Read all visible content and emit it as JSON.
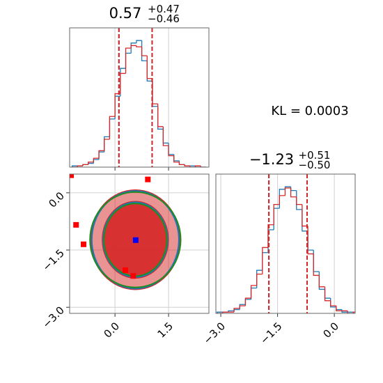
{
  "annotation": "KL = 0.0003",
  "chart_data": [
    {
      "type": "histogram",
      "title": {
        "text": "0.57",
        "sup": "+0.47",
        "sub": "−0.46"
      },
      "bins": [
        -1.2,
        -1.05,
        -0.9,
        -0.75,
        -0.6,
        -0.45,
        -0.3,
        -0.15,
        0.0,
        0.15,
        0.3,
        0.45,
        0.6,
        0.75,
        0.9,
        1.05,
        1.2,
        1.35,
        1.5,
        1.65,
        1.8,
        1.95,
        2.1,
        2.25,
        2.4,
        2.55
      ],
      "series": [
        {
          "color": "#1f77b4",
          "values": [
            0.01,
            0.01,
            0.02,
            0.03,
            0.06,
            0.12,
            0.24,
            0.38,
            0.56,
            0.78,
            0.9,
            0.98,
            1.0,
            0.84,
            0.68,
            0.48,
            0.3,
            0.19,
            0.1,
            0.05,
            0.02,
            0.01,
            0.01,
            0.0,
            0.0
          ],
          "quantiles": [
            0.11,
            1.04
          ]
        },
        {
          "color": "#d62728",
          "values": [
            0.0,
            0.01,
            0.02,
            0.04,
            0.07,
            0.13,
            0.22,
            0.4,
            0.58,
            0.74,
            0.94,
            0.96,
            0.95,
            0.88,
            0.7,
            0.5,
            0.32,
            0.17,
            0.09,
            0.04,
            0.02,
            0.01,
            0.0,
            0.01,
            0.0
          ],
          "quantiles": [
            0.11,
            1.04
          ]
        }
      ],
      "xlim": [
        -1.27,
        2.63
      ],
      "ylim": [
        0,
        1.1
      ],
      "xticks": [
        0,
        1.5
      ],
      "xtick_labels": false,
      "grid": true
    },
    {
      "type": "scatter",
      "contours": [
        {
          "color": "#d62728",
          "filled": true,
          "cx": 0.57,
          "cy": -1.23,
          "rx": [
            1.25,
            0.92
          ],
          "ry": [
            1.3,
            1.0
          ]
        },
        {
          "color": "#1f77b4",
          "filled": false,
          "cx": 0.57,
          "cy": -1.23,
          "rx": [
            1.22,
            0.9
          ],
          "ry": [
            1.28,
            0.98
          ]
        },
        {
          "color": "#228b22",
          "filled": false,
          "cx": 0.57,
          "cy": -1.23,
          "rx": [
            1.27,
            0.88
          ],
          "ry": [
            1.25,
            0.95
          ]
        }
      ],
      "series": [
        {
          "color": "#ff0000",
          "x": [
            -1.23,
            -1.09,
            -0.88,
            0.29,
            0.51,
            0.92
          ],
          "y": [
            0.46,
            -0.84,
            -1.35,
            -2.03,
            -2.18,
            0.35
          ]
        },
        {
          "color": "#0000ff",
          "x": [
            0.58
          ],
          "y": [
            -1.24
          ]
        }
      ],
      "xlim": [
        -1.27,
        2.63
      ],
      "ylim": [
        -3.16,
        0.49
      ],
      "xticks": [
        {
          "value": 0,
          "label": "0.0"
        },
        {
          "value": 1.5,
          "label": "1.5"
        }
      ],
      "yticks": [
        {
          "value": 0,
          "label": "0.0"
        },
        {
          "value": -1.5,
          "label": "−1.5"
        },
        {
          "value": -3,
          "label": "−3.0"
        }
      ],
      "grid": true
    },
    {
      "type": "histogram",
      "title": {
        "text": "−1.23",
        "sup": "+0.51",
        "sub": "−0.50"
      },
      "bins": [
        -3.1,
        -2.95,
        -2.8,
        -2.65,
        -2.5,
        -2.35,
        -2.2,
        -2.05,
        -1.9,
        -1.75,
        -1.6,
        -1.45,
        -1.3,
        -1.15,
        -1.0,
        -0.85,
        -0.7,
        -0.55,
        -0.4,
        -0.25,
        -0.1,
        0.05,
        0.2,
        0.35,
        0.5,
        0.65
      ],
      "series": [
        {
          "color": "#1f77b4",
          "values": [
            0.01,
            0.01,
            0.02,
            0.03,
            0.07,
            0.11,
            0.2,
            0.34,
            0.48,
            0.66,
            0.83,
            0.98,
            1.0,
            0.97,
            0.82,
            0.65,
            0.5,
            0.33,
            0.19,
            0.12,
            0.05,
            0.03,
            0.01,
            0.01,
            0.0
          ],
          "quantiles": [
            -1.73,
            -0.72
          ]
        },
        {
          "color": "#d62728",
          "values": [
            0.0,
            0.01,
            0.01,
            0.04,
            0.06,
            0.12,
            0.22,
            0.31,
            0.52,
            0.7,
            0.86,
            0.93,
            0.99,
            0.92,
            0.86,
            0.69,
            0.47,
            0.3,
            0.21,
            0.1,
            0.06,
            0.02,
            0.02,
            0.0,
            0.01
          ],
          "quantiles": [
            -1.73,
            -0.72
          ]
        }
      ],
      "xlim": [
        -3.13,
        0.55
      ],
      "ylim": [
        0,
        1.1
      ],
      "xticks": [
        {
          "value": -3,
          "label": "−3.0"
        },
        {
          "value": -1.5,
          "label": "−1.5"
        },
        {
          "value": 0,
          "label": "0.0"
        }
      ],
      "xtick_labels": true,
      "grid": true
    }
  ]
}
